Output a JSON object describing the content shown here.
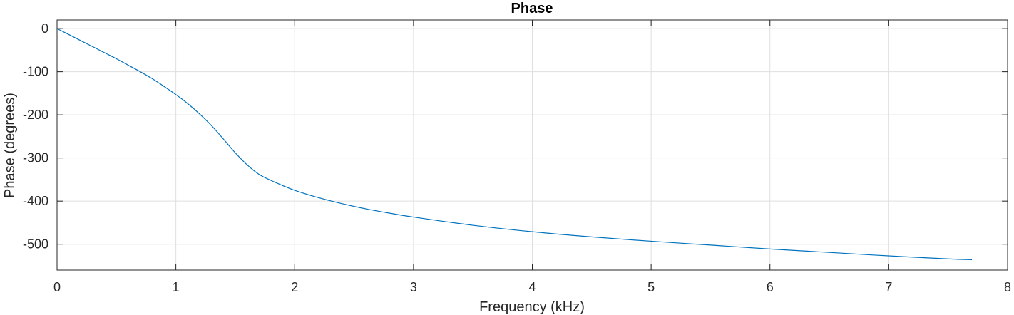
{
  "chart_data": {
    "type": "line",
    "title": "Phase",
    "xlabel": "Frequency (kHz)",
    "ylabel": "Phase (degrees)",
    "xlim": [
      0,
      8
    ],
    "ylim": [
      -560,
      20
    ],
    "xticks": [
      0,
      1,
      2,
      3,
      4,
      5,
      6,
      7,
      8
    ],
    "yticks": [
      0,
      -100,
      -200,
      -300,
      -400,
      -500
    ],
    "xtick_labels": [
      "0",
      "1",
      "2",
      "3",
      "4",
      "5",
      "6",
      "7",
      "8"
    ],
    "ytick_labels": [
      "0",
      "-100",
      "-200",
      "-300",
      "-400",
      "-500"
    ],
    "grid": true,
    "box": true,
    "line_color": "#0072bd",
    "grid_color": "#dfdfdf",
    "axis_color": "#262626",
    "series": [
      {
        "x": [
          0,
          0.1,
          0.2,
          0.3,
          0.4,
          0.5,
          0.6,
          0.7,
          0.8,
          0.9,
          1.0,
          1.1,
          1.2,
          1.3,
          1.4,
          1.5,
          1.6,
          1.7,
          1.8,
          1.9,
          2.0,
          2.2,
          2.4,
          2.6,
          2.8,
          3.0,
          3.5,
          4.0,
          4.5,
          5.0,
          5.5,
          6.0,
          6.5,
          7.0,
          7.5,
          7.7
        ],
        "y": [
          0,
          -14,
          -28,
          -42,
          -56,
          -70,
          -85,
          -100,
          -116,
          -134,
          -153,
          -174,
          -198,
          -225,
          -256,
          -288,
          -316,
          -338,
          -352,
          -364,
          -375,
          -392,
          -406,
          -418,
          -428,
          -437,
          -456,
          -471,
          -483,
          -493,
          -502,
          -511,
          -519,
          -527,
          -534,
          -536
        ]
      }
    ]
  }
}
